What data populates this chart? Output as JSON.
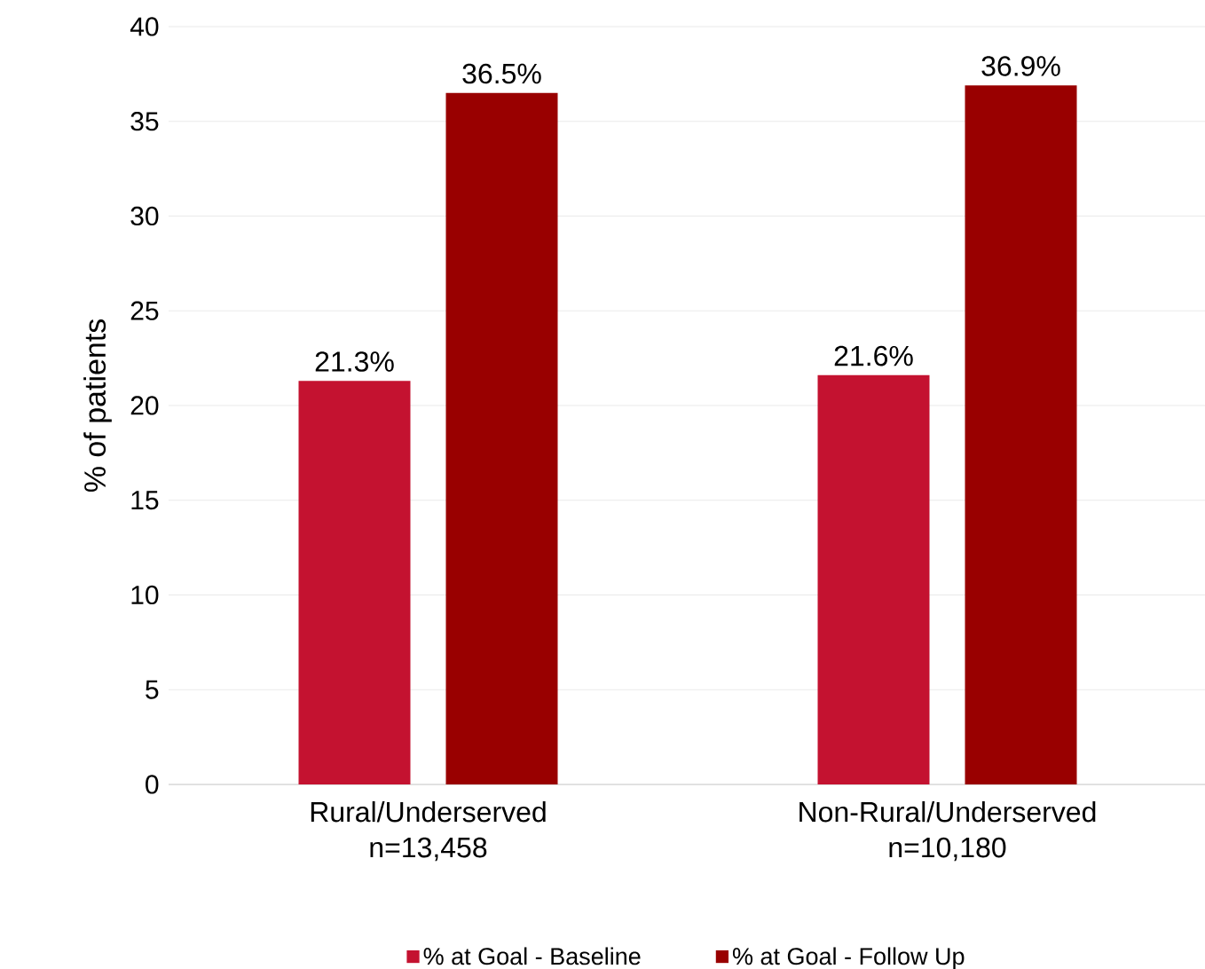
{
  "chart_data": {
    "type": "bar",
    "ylabel": "% of patients",
    "categories": [
      "Rural/Underserved n=13,458",
      "Non-Rural/Underserved n=10,180"
    ],
    "series": [
      {
        "name": "% at Goal - Baseline",
        "color": "#c41230",
        "values": [
          21.3,
          21.6
        ],
        "value_labels": [
          "21.3%",
          "21.6%"
        ]
      },
      {
        "name": "% at Goal - Follow Up",
        "color": "#990000",
        "values": [
          36.5,
          36.9
        ],
        "value_labels": [
          "36.5%",
          "36.9%"
        ]
      }
    ],
    "ylim": [
      0,
      40
    ],
    "yticks": [
      0,
      5,
      10,
      15,
      20,
      25,
      30,
      35,
      40
    ],
    "grid": "y",
    "legend": "bottom"
  }
}
